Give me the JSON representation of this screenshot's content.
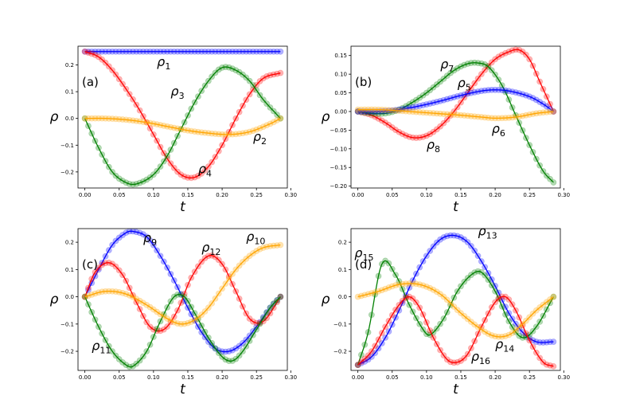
{
  "chart_data": [
    {
      "type": "line",
      "panel_label": "(a)",
      "xlabel": "t",
      "ylabel": "ρ",
      "xlim": [
        -0.01,
        0.295
      ],
      "ylim": [
        -0.26,
        0.27
      ],
      "xticks": [
        0.0,
        0.05,
        0.1,
        0.15,
        0.2,
        0.25,
        0.3
      ],
      "xtick_labels": [
        "0.00",
        "0.05",
        "0.10",
        "0.15",
        "0.20",
        "0.25",
        "0.30"
      ],
      "yticks": [
        -0.2,
        -0.1,
        0.0,
        0.1,
        0.2
      ],
      "ytick_labels": [
        "−0.2",
        "−0.1",
        "0.0",
        "0.1",
        "0.2"
      ],
      "grid": false,
      "t_end": 0.285,
      "series": [
        {
          "color": "#0000ff",
          "x": [
            0,
            0.05,
            0.1,
            0.15,
            0.2,
            0.25,
            0.285
          ],
          "values": [
            0.25,
            0.25,
            0.25,
            0.25,
            0.25,
            0.25,
            0.25
          ]
        },
        {
          "color": "#ff0000",
          "x": [
            0,
            0.02,
            0.04,
            0.06,
            0.08,
            0.1,
            0.12,
            0.14,
            0.16,
            0.18,
            0.2,
            0.22,
            0.24,
            0.26,
            0.285
          ],
          "values": [
            0.25,
            0.23,
            0.18,
            0.11,
            0.03,
            -0.06,
            -0.15,
            -0.21,
            -0.22,
            -0.18,
            -0.1,
            0.0,
            0.09,
            0.15,
            0.17
          ]
        },
        {
          "color": "#008000",
          "x": [
            0,
            0.02,
            0.04,
            0.06,
            0.075,
            0.1,
            0.12,
            0.14,
            0.16,
            0.18,
            0.2,
            0.22,
            0.24,
            0.26,
            0.285
          ],
          "values": [
            0.0,
            -0.11,
            -0.2,
            -0.24,
            -0.245,
            -0.21,
            -0.14,
            -0.04,
            0.06,
            0.14,
            0.19,
            0.18,
            0.14,
            0.07,
            0.0
          ]
        },
        {
          "color": "#ffa500",
          "x": [
            0,
            0.03,
            0.06,
            0.09,
            0.12,
            0.15,
            0.18,
            0.21,
            0.24,
            0.27,
            0.285
          ],
          "values": [
            0.0,
            0.0,
            -0.005,
            -0.015,
            -0.03,
            -0.045,
            -0.055,
            -0.06,
            -0.05,
            -0.02,
            0.0
          ]
        }
      ],
      "annotations": [
        {
          "text": "ρ",
          "sub": "1",
          "x": 0.105,
          "y": 0.195
        },
        {
          "text": "ρ",
          "sub": "3",
          "x": 0.125,
          "y": 0.085
        },
        {
          "text": "ρ",
          "sub": "2",
          "x": 0.245,
          "y": -0.085
        },
        {
          "text": "ρ",
          "sub": "4",
          "x": 0.165,
          "y": -0.205
        }
      ]
    },
    {
      "type": "line",
      "panel_label": "(b)",
      "xlabel": "t",
      "ylabel": "ρ",
      "xlim": [
        -0.01,
        0.295
      ],
      "ylim": [
        -0.205,
        0.175
      ],
      "xticks": [
        0.0,
        0.05,
        0.1,
        0.15,
        0.2,
        0.25,
        0.3
      ],
      "xtick_labels": [
        "0.00",
        "0.05",
        "0.10",
        "0.15",
        "0.20",
        "0.25",
        "0.30"
      ],
      "yticks": [
        -0.2,
        -0.15,
        -0.1,
        -0.05,
        0.0,
        0.05,
        0.1,
        0.15
      ],
      "ytick_labels": [
        "−0.20",
        "−0.15",
        "−0.10",
        "−0.05",
        "0.00",
        "0.05",
        "0.10",
        "0.15"
      ],
      "grid": false,
      "t_end": 0.285,
      "series": [
        {
          "color": "#ff0000",
          "x": [
            0,
            0.02,
            0.04,
            0.06,
            0.08,
            0.1,
            0.12,
            0.14,
            0.16,
            0.18,
            0.2,
            0.22,
            0.235,
            0.25,
            0.265,
            0.285
          ],
          "values": [
            0.0,
            -0.01,
            -0.03,
            -0.055,
            -0.07,
            -0.065,
            -0.04,
            0.0,
            0.05,
            0.1,
            0.14,
            0.16,
            0.165,
            0.14,
            0.08,
            0.0
          ]
        },
        {
          "color": "#008000",
          "x": [
            0,
            0.02,
            0.04,
            0.06,
            0.08,
            0.1,
            0.12,
            0.14,
            0.16,
            0.175,
            0.19,
            0.21,
            0.23,
            0.25,
            0.27,
            0.285
          ],
          "values": [
            0.0,
            -0.005,
            -0.005,
            0.005,
            0.025,
            0.05,
            0.08,
            0.11,
            0.128,
            0.13,
            0.12,
            0.07,
            -0.01,
            -0.09,
            -0.16,
            -0.19
          ]
        },
        {
          "color": "#0000ff",
          "x": [
            0,
            0.03,
            0.06,
            0.09,
            0.12,
            0.15,
            0.18,
            0.2,
            0.22,
            0.25,
            0.27,
            0.285
          ],
          "values": [
            0.0,
            0.0,
            0.005,
            0.015,
            0.028,
            0.043,
            0.055,
            0.058,
            0.055,
            0.04,
            0.02,
            0.0
          ]
        },
        {
          "color": "#ffa500",
          "x": [
            0,
            0.03,
            0.06,
            0.09,
            0.12,
            0.15,
            0.18,
            0.2,
            0.23,
            0.26,
            0.285
          ],
          "values": [
            0.005,
            0.005,
            0.002,
            -0.002,
            -0.006,
            -0.01,
            -0.015,
            -0.018,
            -0.015,
            -0.005,
            0.0
          ]
        }
      ],
      "annotations": [
        {
          "text": "ρ",
          "sub": "7",
          "x": 0.12,
          "y": 0.115
        },
        {
          "text": "ρ",
          "sub": "5",
          "x": 0.145,
          "y": 0.065
        },
        {
          "text": "ρ",
          "sub": "6",
          "x": 0.195,
          "y": -0.058
        },
        {
          "text": "ρ",
          "sub": "8",
          "x": 0.1,
          "y": -0.1
        }
      ]
    },
    {
      "type": "line",
      "panel_label": "(c)",
      "xlabel": "t",
      "ylabel": "ρ",
      "xlim": [
        -0.01,
        0.295
      ],
      "ylim": [
        -0.27,
        0.25
      ],
      "xticks": [
        0.0,
        0.05,
        0.1,
        0.15,
        0.2,
        0.25,
        0.3
      ],
      "xtick_labels": [
        "0.00",
        "0.05",
        "0.10",
        "0.15",
        "0.20",
        "0.25",
        "0.30"
      ],
      "yticks": [
        -0.2,
        -0.1,
        0.0,
        0.1,
        0.2
      ],
      "ytick_labels": [
        "−0.2",
        "−0.1",
        "0.0",
        "0.1",
        "0.2"
      ],
      "grid": false,
      "t_end": 0.285,
      "series": [
        {
          "color": "#0000ff",
          "x": [
            0,
            0.02,
            0.04,
            0.06,
            0.07,
            0.09,
            0.11,
            0.13,
            0.15,
            0.17,
            0.19,
            0.21,
            0.23,
            0.25,
            0.27,
            0.285
          ],
          "values": [
            0.0,
            0.1,
            0.19,
            0.235,
            0.24,
            0.22,
            0.15,
            0.06,
            -0.04,
            -0.13,
            -0.19,
            -0.2,
            -0.17,
            -0.11,
            -0.04,
            0.0
          ]
        },
        {
          "color": "#ff0000",
          "x": [
            0,
            0.015,
            0.035,
            0.055,
            0.075,
            0.095,
            0.115,
            0.135,
            0.155,
            0.18,
            0.2,
            0.22,
            0.24,
            0.26,
            0.285
          ],
          "values": [
            0.0,
            0.09,
            0.125,
            0.08,
            -0.02,
            -0.11,
            -0.12,
            -0.05,
            0.07,
            0.15,
            0.12,
            0.02,
            -0.08,
            -0.09,
            0.0
          ]
        },
        {
          "color": "#008000",
          "x": [
            0,
            0.02,
            0.04,
            0.06,
            0.07,
            0.09,
            0.11,
            0.13,
            0.145,
            0.16,
            0.18,
            0.2,
            0.215,
            0.23,
            0.25,
            0.27,
            0.285
          ],
          "values": [
            0.0,
            -0.11,
            -0.2,
            -0.25,
            -0.255,
            -0.2,
            -0.09,
            0.0,
            0.0,
            -0.06,
            -0.15,
            -0.22,
            -0.235,
            -0.2,
            -0.12,
            -0.04,
            0.0
          ]
        },
        {
          "color": "#ffa500",
          "x": [
            0,
            0.03,
            0.06,
            0.09,
            0.12,
            0.14,
            0.16,
            0.18,
            0.2,
            0.22,
            0.24,
            0.26,
            0.285
          ],
          "values": [
            0.0,
            0.02,
            0.01,
            -0.03,
            -0.08,
            -0.1,
            -0.085,
            -0.04,
            0.03,
            0.1,
            0.15,
            0.18,
            0.19
          ]
        }
      ],
      "annotations": [
        {
          "text": "ρ",
          "sub": "9",
          "x": 0.085,
          "y": 0.2
        },
        {
          "text": "ρ",
          "sub": "12",
          "x": 0.17,
          "y": 0.165
        },
        {
          "text": "ρ",
          "sub": "10",
          "x": 0.235,
          "y": 0.205
        },
        {
          "text": "ρ",
          "sub": "11",
          "x": 0.01,
          "y": -0.195
        }
      ]
    },
    {
      "type": "line",
      "panel_label": "(d)",
      "xlabel": "t",
      "ylabel": "ρ",
      "xlim": [
        -0.01,
        0.295
      ],
      "ylim": [
        -0.27,
        0.25
      ],
      "xticks": [
        0.0,
        0.05,
        0.1,
        0.15,
        0.2,
        0.25,
        0.3
      ],
      "xtick_labels": [
        "0.00",
        "0.05",
        "0.10",
        "0.15",
        "0.20",
        "0.25",
        "0.30"
      ],
      "yticks": [
        -0.2,
        -0.1,
        0.0,
        0.1,
        0.2
      ],
      "ytick_labels": [
        "−0.2",
        "−0.1",
        "0.0",
        "0.1",
        "0.2"
      ],
      "grid": false,
      "t_end": 0.285,
      "series": [
        {
          "color": "#0000ff",
          "x": [
            0,
            0.02,
            0.04,
            0.06,
            0.08,
            0.1,
            0.12,
            0.14,
            0.16,
            0.18,
            0.2,
            0.22,
            0.24,
            0.26,
            0.285
          ],
          "values": [
            -0.25,
            -0.22,
            -0.15,
            -0.05,
            0.06,
            0.15,
            0.21,
            0.225,
            0.2,
            0.13,
            0.04,
            -0.06,
            -0.13,
            -0.165,
            -0.165
          ]
        },
        {
          "color": "#008000",
          "x": [
            0,
            0.015,
            0.035,
            0.055,
            0.075,
            0.095,
            0.105,
            0.125,
            0.145,
            0.165,
            0.18,
            0.2,
            0.22,
            0.24,
            0.26,
            0.285
          ],
          "values": [
            -0.25,
            -0.13,
            0.12,
            0.08,
            -0.03,
            -0.12,
            -0.14,
            -0.08,
            0.02,
            0.08,
            0.09,
            0.02,
            -0.09,
            -0.15,
            -0.11,
            0.0
          ]
        },
        {
          "color": "#ff0000",
          "x": [
            0,
            0.02,
            0.04,
            0.06,
            0.075,
            0.09,
            0.11,
            0.13,
            0.145,
            0.16,
            0.18,
            0.2,
            0.215,
            0.23,
            0.25,
            0.27,
            0.285
          ],
          "values": [
            -0.25,
            -0.2,
            -0.11,
            -0.03,
            0.0,
            -0.04,
            -0.15,
            -0.23,
            -0.24,
            -0.21,
            -0.11,
            -0.02,
            0.0,
            -0.05,
            -0.16,
            -0.24,
            -0.255
          ]
        },
        {
          "color": "#ffa500",
          "x": [
            0,
            0.03,
            0.06,
            0.09,
            0.12,
            0.15,
            0.18,
            0.2,
            0.22,
            0.24,
            0.26,
            0.285
          ],
          "values": [
            0.0,
            0.02,
            0.045,
            0.045,
            0.01,
            -0.06,
            -0.12,
            -0.145,
            -0.14,
            -0.1,
            -0.05,
            0.0
          ]
        }
      ],
      "annotations": [
        {
          "text": "ρ",
          "sub": "15",
          "x": -0.005,
          "y": 0.145
        },
        {
          "text": "ρ",
          "sub": "13",
          "x": 0.175,
          "y": 0.225
        },
        {
          "text": "ρ",
          "sub": "14",
          "x": 0.2,
          "y": -0.19
        },
        {
          "text": "ρ",
          "sub": "16",
          "x": 0.165,
          "y": -0.235
        }
      ]
    }
  ]
}
